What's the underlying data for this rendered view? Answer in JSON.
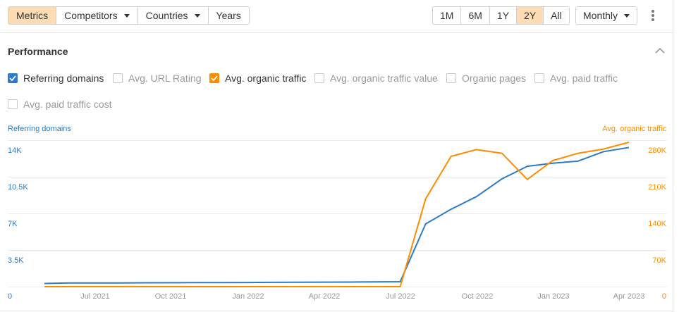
{
  "toolbar": {
    "left_buttons": [
      {
        "label": "Metrics",
        "active": true
      },
      {
        "label": "Competitors",
        "dropdown": true
      },
      {
        "label": "Countries",
        "dropdown": true
      },
      {
        "label": "Years"
      }
    ],
    "range_buttons": [
      {
        "label": "1M"
      },
      {
        "label": "6M"
      },
      {
        "label": "1Y"
      },
      {
        "label": "2Y",
        "active": true
      },
      {
        "label": "All"
      }
    ],
    "interval": "Monthly",
    "more_icon": "vertical-ellipsis-icon"
  },
  "section": {
    "title": "Performance",
    "collapse_icon": "chevron-up-icon"
  },
  "metrics": [
    {
      "label": "Referring domains",
      "checked": true,
      "color": "#2d7ac9"
    },
    {
      "label": "Avg. URL Rating",
      "checked": false
    },
    {
      "label": "Avg. organic traffic",
      "checked": true,
      "color": "#ff8c00"
    },
    {
      "label": "Avg. organic traffic value",
      "checked": false
    },
    {
      "label": "Organic pages",
      "checked": false
    },
    {
      "label": "Avg. paid traffic",
      "checked": false
    },
    {
      "label": "Avg. paid traffic cost",
      "checked": false
    }
  ],
  "colors": {
    "referring_domains": "#2d7ac9",
    "organic_traffic": "#ff8c00",
    "active_button": "#fddcb4",
    "grid": "#ebebeb"
  },
  "chart_data": {
    "type": "line",
    "title": "Performance",
    "x": [
      "May 2021",
      "Jun 2021",
      "Jul 2021",
      "Aug 2021",
      "Sep 2021",
      "Oct 2021",
      "Nov 2021",
      "Dec 2021",
      "Jan 2022",
      "Feb 2022",
      "Mar 2022",
      "Apr 2022",
      "May 2022",
      "Jun 2022",
      "Jul 2022",
      "Aug 2022",
      "Sep 2022",
      "Oct 2022",
      "Nov 2022",
      "Dec 2022",
      "Jan 2023",
      "Feb 2023",
      "Mar 2023",
      "Apr 2023"
    ],
    "x_tick_labels": [
      "Jul 2021",
      "Oct 2021",
      "Jan 2022",
      "Apr 2022",
      "Jul 2022",
      "Oct 2022",
      "Jan 2023",
      "Apr 2023"
    ],
    "y_left": {
      "label": "Referring domains",
      "ticks": [
        "0",
        "3.5K",
        "7K",
        "10.5K",
        "14K"
      ],
      "range": [
        0,
        14000
      ]
    },
    "y_right": {
      "label": "Avg. organic traffic",
      "ticks": [
        "0",
        "70K",
        "140K",
        "210K",
        "280K"
      ],
      "range": [
        0,
        280000
      ]
    },
    "grid": true,
    "legend_position": "top (checkbox toggles)",
    "series": [
      {
        "name": "Referring domains",
        "axis": "left",
        "color": "#2d7ac9",
        "values": [
          300,
          350,
          350,
          360,
          370,
          380,
          390,
          390,
          400,
          410,
          420,
          430,
          440,
          450,
          470,
          6000,
          7400,
          8600,
          10300,
          11500,
          11800,
          12000,
          12900,
          13300
        ]
      },
      {
        "name": "Avg. organic traffic",
        "axis": "right",
        "color": "#ff8c00",
        "values": [
          0,
          0,
          0,
          0,
          0,
          0,
          0,
          0,
          0,
          0,
          0,
          0,
          0,
          0,
          0,
          168000,
          249000,
          262000,
          255000,
          205000,
          241000,
          255000,
          263000,
          276000
        ]
      }
    ]
  },
  "axis_labels": {
    "left_title": "Referring domains",
    "right_title": "Avg. organic traffic",
    "left_ticks": [
      "14K",
      "10.5K",
      "7K",
      "3.5K",
      "0"
    ],
    "right_ticks": [
      "280K",
      "210K",
      "140K",
      "70K",
      "0"
    ],
    "x_ticks": [
      "Jul 2021",
      "Oct 2021",
      "Jan 2022",
      "Apr 2022",
      "Jul 2022",
      "Oct 2022",
      "Jan 2023",
      "Apr 2023"
    ]
  }
}
